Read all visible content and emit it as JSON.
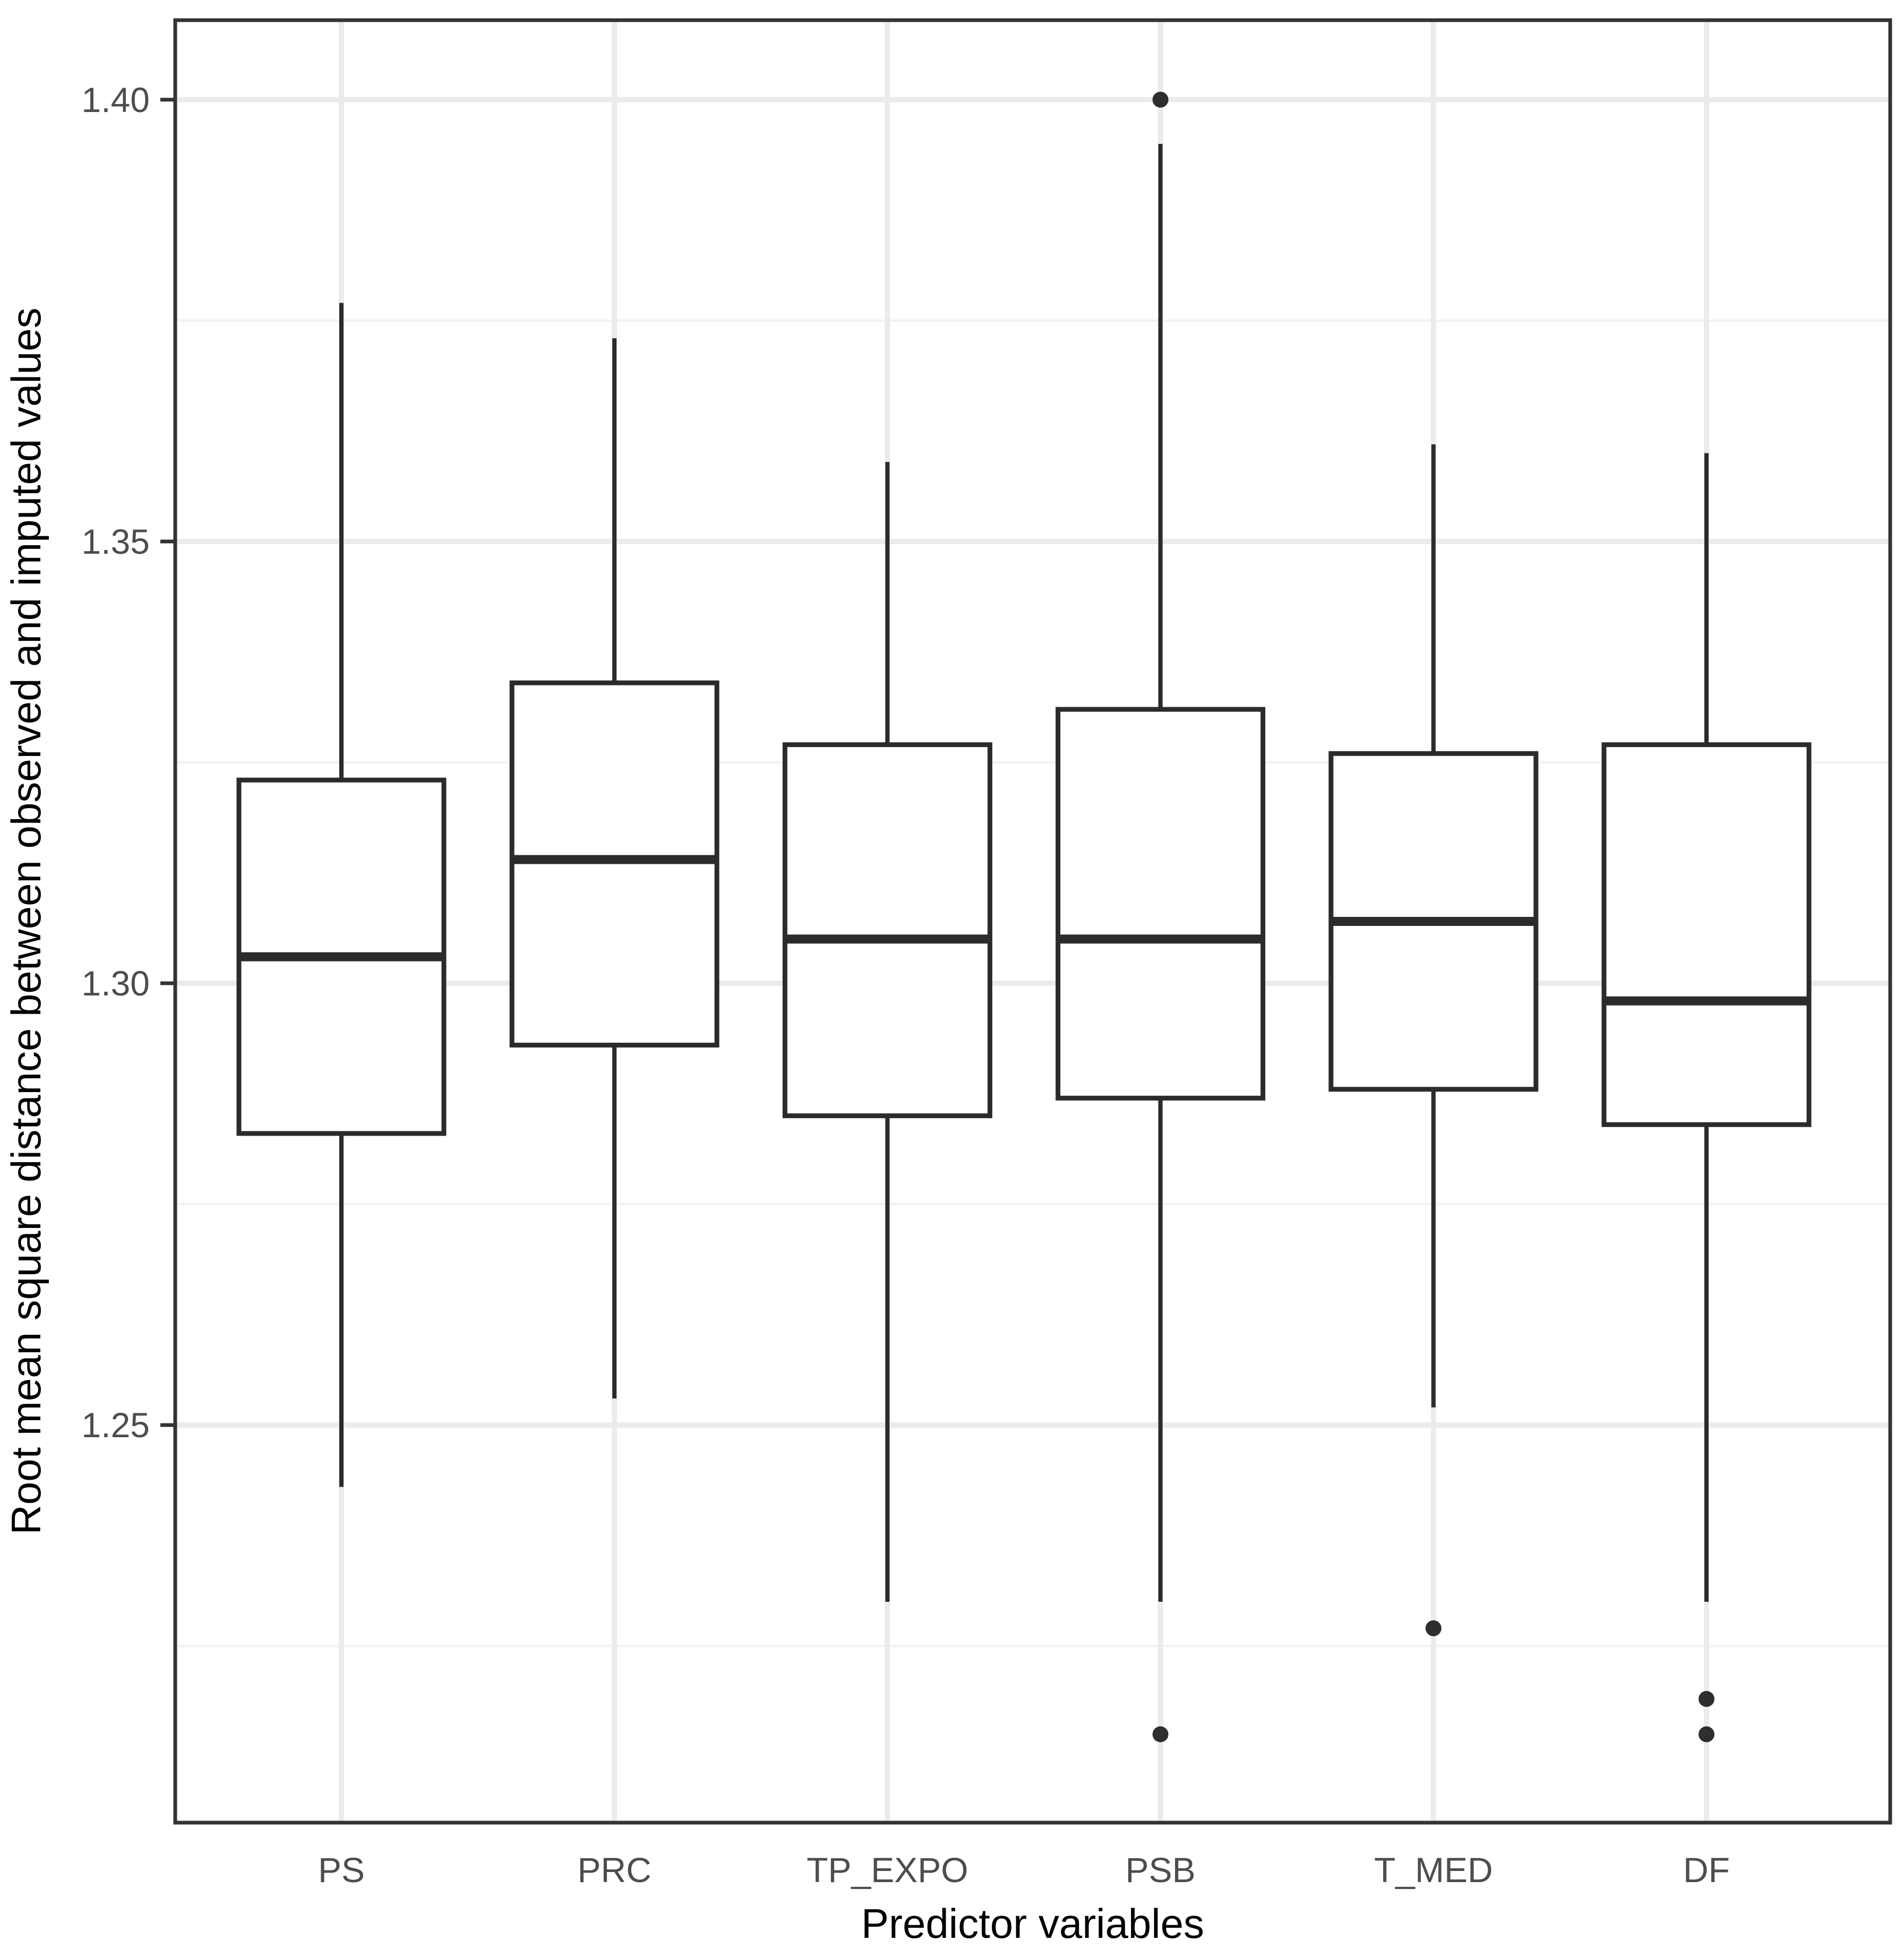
{
  "figure": {
    "background": "#ffffff",
    "panel_border_color": "#333333"
  },
  "chart_data": {
    "type": "boxplot",
    "title": "",
    "xlabel": "Predictor variables",
    "ylabel": "Root mean square distance between observed and imputed values",
    "ylim": [
      1.205,
      1.409
    ],
    "grid": "major+minor horizontal and vertical-major, light gray on white",
    "legend": "none",
    "categories": [
      "PS",
      "PRC",
      "TP_EXPO",
      "PSB",
      "T_MED",
      "DF"
    ],
    "y_ticks": [
      {
        "value": 1.25,
        "label": "1.25"
      },
      {
        "value": 1.3,
        "label": "1.30"
      },
      {
        "value": 1.35,
        "label": "1.35"
      },
      {
        "value": 1.4,
        "label": "1.40"
      }
    ],
    "y_minor_ticks": [
      1.225,
      1.275,
      1.325,
      1.375
    ],
    "series": [
      {
        "name": "PS",
        "min": 1.243,
        "q1": 1.283,
        "median": 1.303,
        "q3": 1.323,
        "max": 1.377,
        "outliers": []
      },
      {
        "name": "PRC",
        "min": 1.253,
        "q1": 1.293,
        "median": 1.314,
        "q3": 1.334,
        "max": 1.373,
        "outliers": []
      },
      {
        "name": "TP_EXPO",
        "min": 1.23,
        "q1": 1.285,
        "median": 1.305,
        "q3": 1.327,
        "max": 1.359,
        "outliers": []
      },
      {
        "name": "PSB",
        "min": 1.23,
        "q1": 1.287,
        "median": 1.305,
        "q3": 1.331,
        "max": 1.395,
        "outliers": [
          1.4,
          1.215
        ]
      },
      {
        "name": "T_MED",
        "min": 1.252,
        "q1": 1.288,
        "median": 1.307,
        "q3": 1.326,
        "max": 1.361,
        "outliers": [
          1.227
        ]
      },
      {
        "name": "DF",
        "min": 1.23,
        "q1": 1.284,
        "median": 1.298,
        "q3": 1.327,
        "max": 1.36,
        "outliers": [
          1.219,
          1.215
        ]
      }
    ],
    "colors": {
      "box_stroke": "#2b2b2b",
      "box_fill": "#ffffff",
      "outlier": "#2e2e2e",
      "grid_major": "#ebebeb",
      "grid_minor": "#f3f3f3",
      "panel_border": "#333333",
      "tick_mark": "#333333",
      "tick_label": "#4d4d4d",
      "axis_title": "#000000"
    }
  }
}
